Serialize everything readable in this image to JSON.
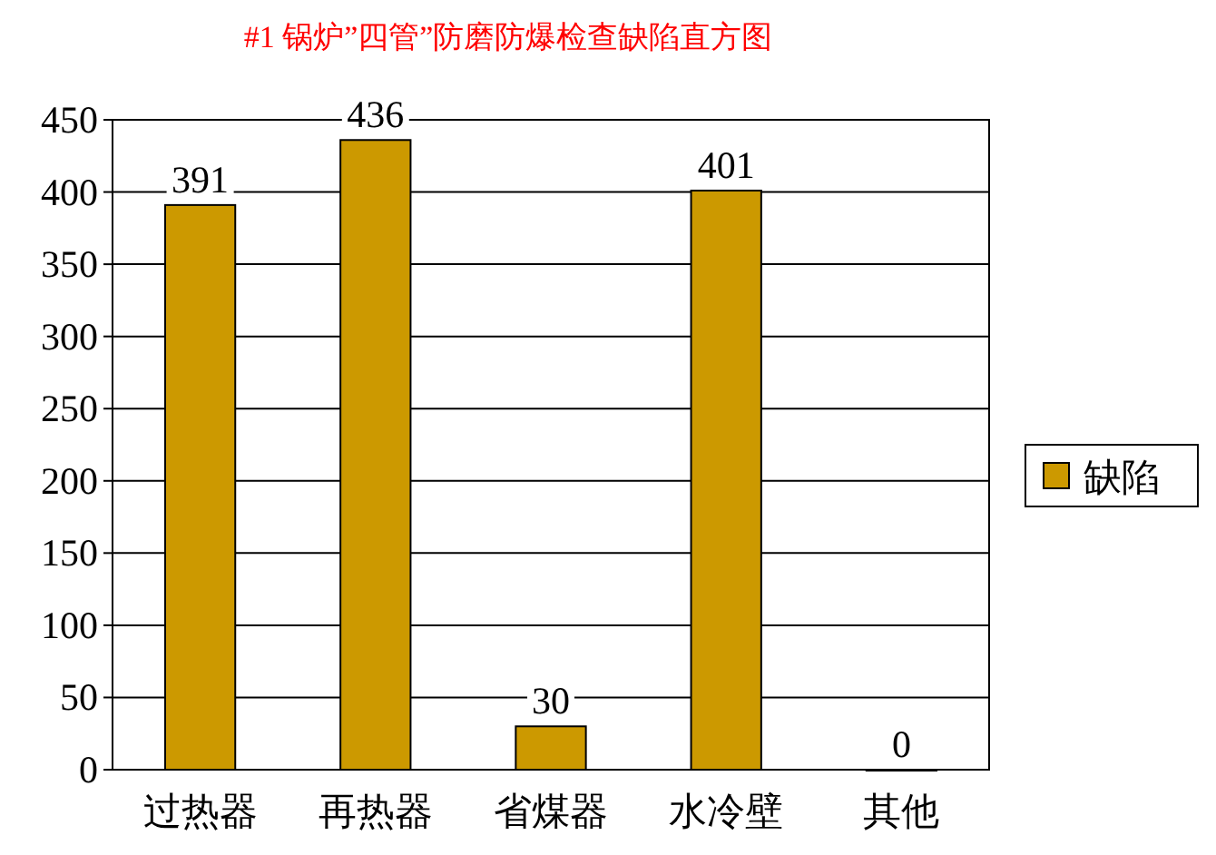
{
  "chart_data": {
    "type": "bar",
    "title": "#1 锅炉”四管”防磨防爆检查缺陷直方图",
    "categories": [
      "过热器",
      "再热器",
      "省煤器",
      "水冷壁",
      "其他"
    ],
    "series": [
      {
        "name": "缺陷",
        "color": "#cc9900",
        "values": [
          391,
          436,
          30,
          401,
          0
        ]
      }
    ],
    "ylim": [
      0,
      450
    ],
    "yticks": [
      0,
      50,
      100,
      150,
      200,
      250,
      300,
      350,
      400,
      450
    ],
    "grid": "y",
    "legend": "right",
    "data_labels": true
  }
}
